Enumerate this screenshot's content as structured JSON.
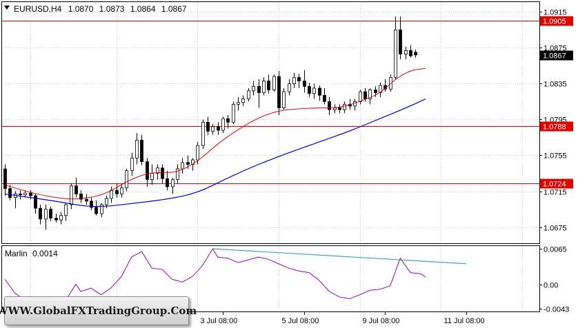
{
  "header": {
    "symbol_timeframe": "EURUSD,H4",
    "open": "1.0870",
    "high": "1.0873",
    "low": "1.0864",
    "close": "1.0867"
  },
  "indicator": {
    "name": "Marlin",
    "value": "0.0014"
  },
  "watermark": "WWW.GlobalFXTradingGroup.Com",
  "colors": {
    "level_line": "#e00000",
    "ma_fast": "#e00000",
    "ma_slow": "#0000cc",
    "marlin": "#9900aa",
    "trendline": "#4aa3a8",
    "grid": "#c8c8c8"
  },
  "chart_data": [
    {
      "type": "candlestick",
      "title": "EURUSD,H4",
      "y_ticks": [
        "1.0915",
        "1.0875",
        "1.0835",
        "1.0795",
        "1.0755",
        "1.0715",
        "1.0675"
      ],
      "ylim": [
        1.0657,
        1.0926
      ],
      "x_ticks": [
        "3 Jul 08:00",
        "5 Jul 08:00",
        "9 Jul 08:00",
        "11 Jul 08:00"
      ],
      "levels": [
        {
          "label": "1.0905",
          "value": 1.0905
        },
        {
          "label": "1.0788",
          "value": 1.0788
        },
        {
          "label": "1.0724",
          "value": 1.0724
        }
      ],
      "current_price": {
        "label": "1.0867",
        "value": 1.0867
      },
      "ohlc": [
        [
          1.074,
          1.0745,
          1.071,
          1.0718
        ],
        [
          1.0718,
          1.0722,
          1.0705,
          1.0708
        ],
        [
          1.0708,
          1.0715,
          1.0696,
          1.0712
        ],
        [
          1.0712,
          1.0716,
          1.0706,
          1.0711
        ],
        [
          1.0711,
          1.0716,
          1.0708,
          1.0713
        ],
        [
          1.0713,
          1.0716,
          1.0706,
          1.071
        ],
        [
          1.071,
          1.0712,
          1.069,
          1.0696
        ],
        [
          1.0696,
          1.07,
          1.0678,
          1.0684
        ],
        [
          1.0684,
          1.07,
          1.0672,
          1.0695
        ],
        [
          1.0695,
          1.0698,
          1.0682,
          1.0685
        ],
        [
          1.0685,
          1.069,
          1.068,
          1.0683
        ],
        [
          1.0683,
          1.0692,
          1.0678,
          1.0688
        ],
        [
          1.0688,
          1.0702,
          1.0682,
          1.07
        ],
        [
          1.07,
          1.0724,
          1.0695,
          1.0721
        ],
        [
          1.0721,
          1.073,
          1.0708,
          1.0712
        ],
        [
          1.0712,
          1.0716,
          1.0702,
          1.0706
        ],
        [
          1.0706,
          1.0712,
          1.07,
          1.0704
        ],
        [
          1.0704,
          1.0708,
          1.0694,
          1.0697
        ],
        [
          1.0697,
          1.0705,
          1.0688,
          1.069
        ],
        [
          1.069,
          1.0702,
          1.0686,
          1.07
        ],
        [
          1.07,
          1.071,
          1.0696,
          1.0707
        ],
        [
          1.0707,
          1.072,
          1.0702,
          1.0716
        ],
        [
          1.0716,
          1.0724,
          1.0708,
          1.0712
        ],
        [
          1.0712,
          1.0722,
          1.0708,
          1.0719
        ],
        [
          1.0719,
          1.074,
          1.0715,
          1.0738
        ],
        [
          1.0738,
          1.0758,
          1.0732,
          1.0752
        ],
        [
          1.0752,
          1.078,
          1.0745,
          1.0772
        ],
        [
          1.0772,
          1.0778,
          1.0744,
          1.0748
        ],
        [
          1.0748,
          1.0752,
          1.072,
          1.0728
        ],
        [
          1.0728,
          1.0745,
          1.0722,
          1.0735
        ],
        [
          1.0735,
          1.0745,
          1.0728,
          1.0741
        ],
        [
          1.0741,
          1.0745,
          1.0724,
          1.0729
        ],
        [
          1.0729,
          1.0738,
          1.0716,
          1.072
        ],
        [
          1.072,
          1.073,
          1.0712,
          1.0728
        ],
        [
          1.0728,
          1.0745,
          1.0724,
          1.074
        ],
        [
          1.074,
          1.0752,
          1.0735,
          1.0747
        ],
        [
          1.0747,
          1.0755,
          1.074,
          1.0745
        ],
        [
          1.0745,
          1.0752,
          1.0738,
          1.075
        ],
        [
          1.075,
          1.077,
          1.0745,
          1.0766
        ],
        [
          1.0766,
          1.0795,
          1.0762,
          1.0792
        ],
        [
          1.0792,
          1.0798,
          1.0778,
          1.0782
        ],
        [
          1.0782,
          1.079,
          1.0778,
          1.0787
        ],
        [
          1.0787,
          1.0792,
          1.0778,
          1.0783
        ],
        [
          1.0783,
          1.0798,
          1.078,
          1.0796
        ],
        [
          1.0796,
          1.08,
          1.0785,
          1.0792
        ],
        [
          1.0792,
          1.0815,
          1.079,
          1.0812
        ],
        [
          1.0812,
          1.082,
          1.0805,
          1.0814
        ],
        [
          1.0814,
          1.0822,
          1.081,
          1.0818
        ],
        [
          1.0818,
          1.083,
          1.0815,
          1.0827
        ],
        [
          1.0827,
          1.0838,
          1.0822,
          1.0832
        ],
        [
          1.0832,
          1.084,
          1.0808,
          1.0825
        ],
        [
          1.0825,
          1.0842,
          1.0822,
          1.0838
        ],
        [
          1.0838,
          1.0845,
          1.0824,
          1.0828
        ],
        [
          1.0828,
          1.0845,
          1.0826,
          1.0843
        ],
        [
          1.0843,
          1.0849,
          1.08,
          1.0808
        ],
        [
          1.0808,
          1.083,
          1.0806,
          1.0826
        ],
        [
          1.0826,
          1.084,
          1.0822,
          1.0835
        ],
        [
          1.0835,
          1.0847,
          1.083,
          1.0842
        ],
        [
          1.0842,
          1.0846,
          1.083,
          1.0838
        ],
        [
          1.0838,
          1.085,
          1.0825,
          1.0832
        ],
        [
          1.0832,
          1.0836,
          1.082,
          1.0824
        ],
        [
          1.0824,
          1.0835,
          1.0818,
          1.083
        ],
        [
          1.083,
          1.0833,
          1.0816,
          1.0822
        ],
        [
          1.0822,
          1.083,
          1.0812,
          1.0815
        ],
        [
          1.0815,
          1.082,
          1.08,
          1.0806
        ],
        [
          1.0806,
          1.0812,
          1.0802,
          1.0808
        ],
        [
          1.0808,
          1.0812,
          1.0802,
          1.0806
        ],
        [
          1.0806,
          1.0815,
          1.0802,
          1.0812
        ],
        [
          1.0812,
          1.0818,
          1.0806,
          1.081
        ],
        [
          1.081,
          1.0818,
          1.0805,
          1.0815
        ],
        [
          1.0815,
          1.0828,
          1.0812,
          1.0826
        ],
        [
          1.0826,
          1.083,
          1.0815,
          1.0818
        ],
        [
          1.0818,
          1.083,
          1.0812,
          1.0828
        ],
        [
          1.0828,
          1.0832,
          1.082,
          1.0825
        ],
        [
          1.0825,
          1.0836,
          1.082,
          1.0833
        ],
        [
          1.0833,
          1.084,
          1.0826,
          1.0829
        ],
        [
          1.0829,
          1.0845,
          1.0826,
          1.0842
        ],
        [
          1.0842,
          1.091,
          1.084,
          1.0895
        ],
        [
          1.0895,
          1.091,
          1.0862,
          1.0868
        ],
        [
          1.0868,
          1.0876,
          1.0862,
          1.0872
        ],
        [
          1.0872,
          1.0878,
          1.0864,
          1.0866
        ],
        [
          1.087,
          1.0873,
          1.0864,
          1.0867
        ]
      ],
      "ma_fast": [
        [
          0,
          1.0722
        ],
        [
          6,
          1.0712
        ],
        [
          12,
          1.0706
        ],
        [
          16,
          1.0707
        ],
        [
          20,
          1.0712
        ],
        [
          24,
          1.0726
        ],
        [
          28,
          1.0735
        ],
        [
          31,
          1.0736
        ],
        [
          34,
          1.0736
        ],
        [
          38,
          1.0748
        ],
        [
          42,
          1.0768
        ],
        [
          46,
          1.0784
        ],
        [
          50,
          1.0797
        ],
        [
          54,
          1.0805
        ],
        [
          58,
          1.0807
        ],
        [
          62,
          1.0808
        ],
        [
          66,
          1.0808
        ],
        [
          70,
          1.0815
        ],
        [
          74,
          1.0824
        ],
        [
          77,
          1.084
        ],
        [
          80,
          1.085
        ],
        [
          83,
          1.0852
        ]
      ],
      "ma_slow": [
        [
          0,
          1.0712
        ],
        [
          10,
          1.0704
        ],
        [
          16,
          1.0698
        ],
        [
          20,
          1.0698
        ],
        [
          26,
          1.0702
        ],
        [
          32,
          1.0706
        ],
        [
          38,
          1.0713
        ],
        [
          44,
          1.073
        ],
        [
          50,
          1.0745
        ],
        [
          56,
          1.0758
        ],
        [
          62,
          1.077
        ],
        [
          68,
          1.0782
        ],
        [
          74,
          1.0796
        ],
        [
          80,
          1.081
        ],
        [
          83,
          1.0818
        ]
      ]
    },
    {
      "type": "line",
      "title": "Marlin 0.0014",
      "y_ticks": [
        "0.0065",
        "0.00",
        "-0.0043"
      ],
      "ylim": [
        -0.0048,
        0.007
      ],
      "series": [
        {
          "name": "Marlin",
          "values": [
            [
              0,
              0.001
            ],
            [
              2,
              -0.0015
            ],
            [
              4,
              -0.0028
            ],
            [
              6,
              -0.003
            ],
            [
              8,
              -0.0031
            ],
            [
              10,
              -0.0026
            ],
            [
              12,
              -0.0028
            ],
            [
              14,
              0.0001
            ],
            [
              15,
              -0.0012
            ],
            [
              17,
              -0.0006
            ],
            [
              19,
              -0.0018
            ],
            [
              21,
              -0.0005
            ],
            [
              23,
              0.0015
            ],
            [
              25,
              0.005
            ],
            [
              27,
              0.006
            ],
            [
              29,
              0.003
            ],
            [
              31,
              0.0028
            ],
            [
              33,
              0.001
            ],
            [
              35,
              0.0005
            ],
            [
              37,
              0.0015
            ],
            [
              39,
              0.0035
            ],
            [
              41,
              0.0065
            ],
            [
              42,
              0.005
            ],
            [
              44,
              0.0048
            ],
            [
              46,
              0.004
            ],
            [
              48,
              0.0045
            ],
            [
              50,
              0.005
            ],
            [
              52,
              0.0046
            ],
            [
              54,
              0.0038
            ],
            [
              56,
              0.003
            ],
            [
              58,
              0.0025
            ],
            [
              60,
              0.0022
            ],
            [
              62,
              0.0008
            ],
            [
              64,
              -0.0012
            ],
            [
              66,
              -0.0022
            ],
            [
              68,
              -0.0025
            ],
            [
              70,
              -0.0018
            ],
            [
              72,
              -0.001
            ],
            [
              74,
              -0.0008
            ],
            [
              76,
              -0.0002
            ],
            [
              78,
              0.0048
            ],
            [
              80,
              0.0022
            ],
            [
              82,
              0.002
            ],
            [
              83,
              0.0014
            ]
          ]
        }
      ],
      "trendline": [
        [
          41,
          0.0065
        ],
        [
          91,
          0.0038
        ]
      ]
    }
  ]
}
